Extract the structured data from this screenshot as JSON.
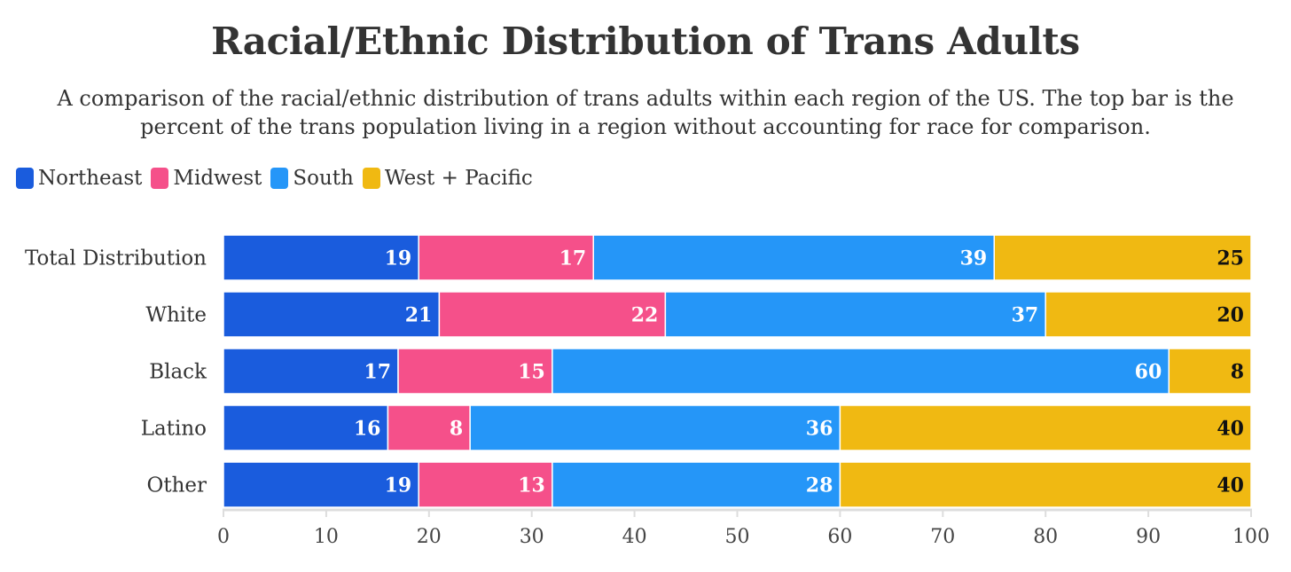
{
  "title": "Racial/Ethnic Distribution of Trans Adults",
  "subtitle_lines": [
    "A comparison of the racial/ethnic distribution of trans adults within each region of the US. The top bar is the",
    "percent of the trans population living in a region without accounting for race for comparison."
  ],
  "chart_data": {
    "type": "bar",
    "orientation": "horizontal",
    "stacked": true,
    "categories": [
      "Total Distribution",
      "White",
      "Black",
      "Latino",
      "Other"
    ],
    "series": [
      {
        "name": "Northeast",
        "color": "#1a5cdd",
        "label_color": "#ffffff",
        "values": [
          19,
          21,
          17,
          16,
          19
        ]
      },
      {
        "name": "Midwest",
        "color": "#f5508a",
        "label_color": "#ffffff",
        "values": [
          17,
          22,
          15,
          8,
          13
        ]
      },
      {
        "name": "South",
        "color": "#2596f8",
        "label_color": "#ffffff",
        "values": [
          39,
          37,
          60,
          36,
          28
        ]
      },
      {
        "name": "West + Pacific",
        "color": "#f0b912",
        "label_color": "#111111",
        "values": [
          25,
          20,
          8,
          40,
          40
        ]
      }
    ],
    "xlim": [
      0,
      100
    ],
    "xticks": [
      0,
      10,
      20,
      30,
      40,
      50,
      60,
      70,
      80,
      90,
      100
    ],
    "legend_position": "top-left",
    "grid": false
  }
}
